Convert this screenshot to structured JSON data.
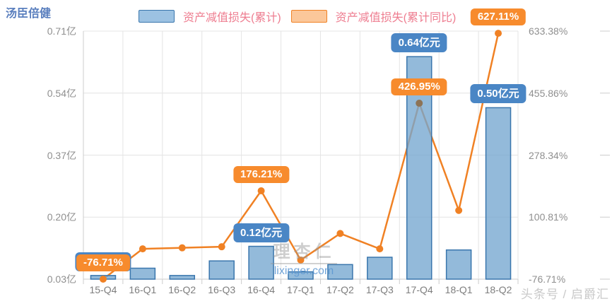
{
  "header": {
    "title": "汤臣倍健"
  },
  "legend": {
    "items": [
      {
        "label": "资产减值损失(累计)",
        "type": "bar"
      },
      {
        "label": "资产减值损失(累计同比)",
        "type": "line"
      }
    ]
  },
  "chart_data": {
    "type": "bar+line",
    "title": "汤臣倍健",
    "categories": [
      "15-Q4",
      "16-Q1",
      "16-Q2",
      "16-Q3",
      "16-Q4",
      "17-Q1",
      "17-Q2",
      "17-Q3",
      "17-Q4",
      "18-Q1",
      "18-Q2"
    ],
    "series": [
      {
        "name": "资产减值损失(累计)",
        "type": "bar",
        "axis": "left",
        "unit": "亿",
        "values": [
          0.04,
          0.06,
          0.04,
          0.08,
          0.12,
          0.05,
          0.07,
          0.09,
          0.64,
          0.11,
          0.5
        ]
      },
      {
        "name": "资产减值损失(累计同比)",
        "type": "line",
        "axis": "right",
        "unit": "%",
        "values": [
          -76.71,
          10,
          13,
          16,
          176.21,
          -22,
          54,
          10,
          426.95,
          120,
          627.11
        ]
      }
    ],
    "left_axis": {
      "min": 0.03,
      "max": 0.71,
      "tick_labels": [
        "0.71亿",
        "0.54亿",
        "0.37亿",
        "0.20亿",
        "0.03亿"
      ]
    },
    "right_axis": {
      "min": -76.71,
      "max": 633.38,
      "tick_labels": [
        "633.38%",
        "455.86%",
        "278.34%",
        "100.81%",
        "-76.71%"
      ]
    },
    "data_labels": [
      {
        "category": "15-Q4",
        "series": "bar",
        "value": 0.04,
        "text": "0.04亿元"
      },
      {
        "category": "15-Q4",
        "series": "line",
        "value": -76.71,
        "text": "-76.71%"
      },
      {
        "category": "16-Q4",
        "series": "bar",
        "value": 0.12,
        "text": "0.12亿元"
      },
      {
        "category": "16-Q4",
        "series": "line",
        "value": 176.21,
        "text": "176.21%"
      },
      {
        "category": "17-Q4",
        "series": "bar",
        "value": 0.64,
        "text": "0.64亿元"
      },
      {
        "category": "17-Q4",
        "series": "line",
        "value": 426.95,
        "text": "426.95%"
      },
      {
        "category": "18-Q2",
        "series": "bar",
        "value": 0.5,
        "text": "0.50亿元"
      },
      {
        "category": "18-Q2",
        "series": "line",
        "value": 627.11,
        "text": "627.11%"
      }
    ],
    "legend_position": "top",
    "grid": true
  },
  "watermark": {
    "logo": "理杏仁",
    "url": "lixinger.com"
  },
  "credit": "头条号 / 启爵汇",
  "colors": {
    "title": "#5a7fbe",
    "legend_text": "#ee7d90",
    "bar_fill": "rgba(116,166,208,0.78)",
    "bar_border": "#3a76ad",
    "bar_swatch_fill": "#9cc2e2",
    "line": "#f08124",
    "line_swatch_fill": "#fbc79a",
    "badge_bar_bg": "#4a86c5",
    "badge_line_bg": "#f78b2d",
    "highlight_dot": "#8d7356",
    "axis_text": "#8f8f8f",
    "x_text": "#7e7e7e",
    "grid_line": "#e4e4e4",
    "axis_line": "#cccccc",
    "watermark_gray": "#9a9a9a",
    "watermark_blue": "#5b96d2",
    "credit_text": "#c9c9c9"
  }
}
